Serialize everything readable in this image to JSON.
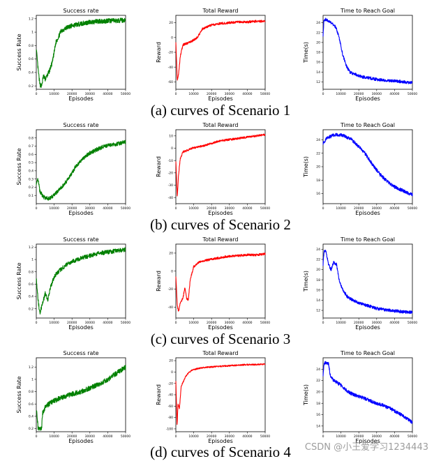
{
  "captions": [
    "(a) curves of Scenario 1",
    "(b) curves of Scenario 2",
    "(c) curves of Scenario 3",
    "(d) curves of Scenario 4"
  ],
  "watermark": "CSDN @小王爱学习1234443",
  "chart_data": [
    {
      "type": "line",
      "scenario": "a",
      "title": "Success rate",
      "xlabel": "Episodes",
      "ylabel": "Success Rate",
      "color": "#008000",
      "xlim": [
        0,
        50000
      ],
      "xticks": [
        0,
        10000,
        20000,
        30000,
        40000,
        50000
      ],
      "ylim": [
        0.15,
        1.25
      ],
      "yticks": [
        0.2,
        0.4,
        0.6,
        0.8,
        1.0,
        1.2
      ],
      "x": [
        0,
        1000,
        2000,
        3000,
        4000,
        5000,
        7000,
        9000,
        11000,
        14000,
        18000,
        22000,
        26000,
        30000,
        35000,
        40000,
        45000,
        50000
      ],
      "y": [
        0.75,
        0.45,
        0.22,
        0.2,
        0.35,
        0.3,
        0.4,
        0.55,
        0.85,
        1.02,
        1.08,
        1.11,
        1.13,
        1.15,
        1.16,
        1.17,
        1.17,
        1.18
      ],
      "noise": 0.035
    },
    {
      "type": "line",
      "scenario": "a",
      "title": "Total Reward",
      "xlabel": "Episodes",
      "ylabel": "Reward",
      "color": "#ff0000",
      "xlim": [
        0,
        50000
      ],
      "xticks": [
        0,
        10000,
        20000,
        30000,
        40000,
        50000
      ],
      "ylim": [
        -70,
        30
      ],
      "yticks": [
        -60,
        -40,
        -20,
        0,
        20
      ],
      "x": [
        0,
        800,
        1500,
        2500,
        4000,
        6000,
        9000,
        12000,
        15000,
        20000,
        25000,
        30000,
        35000,
        40000,
        45000,
        50000
      ],
      "y": [
        -5,
        -58,
        -50,
        -25,
        -10,
        -8,
        -5,
        0,
        12,
        17,
        19,
        20,
        21,
        21,
        22,
        22
      ],
      "noise": 1.5
    },
    {
      "type": "line",
      "scenario": "a",
      "title": "Time to Reach Goal",
      "xlabel": "Episodes",
      "ylabel": "Time(s)",
      "color": "#0000ff",
      "xlim": [
        0,
        50000
      ],
      "xticks": [
        0,
        10000,
        20000,
        30000,
        40000,
        50000
      ],
      "ylim": [
        10.5,
        25.5
      ],
      "yticks": [
        12,
        14,
        16,
        18,
        20,
        22,
        24
      ],
      "x": [
        0,
        500,
        1500,
        3000,
        5000,
        7000,
        9000,
        11000,
        13000,
        15000,
        18000,
        22000,
        26000,
        30000,
        35000,
        40000,
        45000,
        50000
      ],
      "y": [
        21.5,
        24.5,
        24.7,
        24.3,
        23.8,
        23.2,
        21,
        17.5,
        15.2,
        14,
        13.5,
        13,
        12.8,
        12.5,
        12.3,
        12.2,
        12,
        11.8
      ],
      "noise": 0.3
    },
    {
      "type": "line",
      "scenario": "b",
      "title": "Success rate",
      "xlabel": "Episodes",
      "ylabel": "Success Rate",
      "color": "#008000",
      "xlim": [
        0,
        50000
      ],
      "xticks": [
        0,
        10000,
        20000,
        30000,
        40000,
        50000
      ],
      "ylim": [
        0.0,
        0.9
      ],
      "yticks": [
        0.1,
        0.2,
        0.3,
        0.4,
        0.5,
        0.6,
        0.7,
        0.8
      ],
      "x": [
        0,
        1000,
        2000,
        4000,
        7000,
        10000,
        14000,
        18000,
        22000,
        26000,
        30000,
        34000,
        38000,
        42000,
        46000,
        50000
      ],
      "y": [
        0.25,
        0.3,
        0.15,
        0.08,
        0.06,
        0.1,
        0.2,
        0.3,
        0.45,
        0.55,
        0.62,
        0.66,
        0.7,
        0.71,
        0.73,
        0.75
      ],
      "noise": 0.025
    },
    {
      "type": "line",
      "scenario": "b",
      "title": "Total Reward",
      "xlabel": "Episodes",
      "ylabel": "Reward",
      "color": "#ff0000",
      "xlim": [
        0,
        50000
      ],
      "xticks": [
        0,
        10000,
        20000,
        30000,
        40000,
        50000
      ],
      "ylim": [
        -45,
        15
      ],
      "yticks": [
        -40,
        -30,
        -20,
        -10,
        0,
        10
      ],
      "x": [
        0,
        800,
        1500,
        2500,
        4000,
        6000,
        9000,
        12000,
        16000,
        20000,
        25000,
        30000,
        35000,
        40000,
        45000,
        50000
      ],
      "y": [
        -10,
        -40,
        -22,
        -8,
        -3,
        -2,
        0,
        1,
        2,
        4,
        6,
        7,
        8,
        9,
        10,
        11
      ],
      "noise": 0.8
    },
    {
      "type": "line",
      "scenario": "b",
      "title": "Time to Reach Goal",
      "xlabel": "Episodes",
      "ylabel": "Time(s)",
      "color": "#0000ff",
      "xlim": [
        0,
        50000
      ],
      "xticks": [
        0,
        10000,
        20000,
        30000,
        40000,
        50000
      ],
      "ylim": [
        14.5,
        25.5
      ],
      "yticks": [
        16,
        18,
        20,
        22,
        24
      ],
      "x": [
        0,
        2000,
        5000,
        8000,
        12000,
        16000,
        20000,
        24000,
        28000,
        32000,
        36000,
        40000,
        44000,
        48000,
        50000
      ],
      "y": [
        23.5,
        24.2,
        24.6,
        24.8,
        24.6,
        24,
        23,
        21.8,
        20.2,
        18.8,
        17.8,
        17,
        16.5,
        16,
        15.8
      ],
      "noise": 0.25
    },
    {
      "type": "line",
      "scenario": "c",
      "title": "Success rate",
      "xlabel": "Episodes",
      "ylabel": "Success Rate",
      "color": "#008000",
      "xlim": [
        0,
        50000
      ],
      "xticks": [
        0,
        10000,
        20000,
        30000,
        40000,
        50000
      ],
      "ylim": [
        0.05,
        1.25
      ],
      "yticks": [
        0.2,
        0.4,
        0.6,
        0.8,
        1.0,
        1.2
      ],
      "x": [
        0,
        1000,
        2000,
        3500,
        5000,
        6500,
        8000,
        10000,
        13000,
        17000,
        21000,
        25000,
        30000,
        35000,
        40000,
        45000,
        50000
      ],
      "y": [
        0.7,
        0.35,
        0.12,
        0.28,
        0.45,
        0.35,
        0.55,
        0.72,
        0.82,
        0.92,
        0.98,
        1.02,
        1.06,
        1.1,
        1.12,
        1.14,
        1.16
      ],
      "noise": 0.035
    },
    {
      "type": "line",
      "scenario": "c",
      "title": "Total Reward",
      "xlabel": "Episodes",
      "ylabel": "Reward",
      "color": "#ff0000",
      "xlim": [
        0,
        50000
      ],
      "xticks": [
        0,
        10000,
        20000,
        30000,
        40000,
        50000
      ],
      "ylim": [
        -52,
        30
      ],
      "yticks": [
        -40,
        -20,
        0,
        20
      ],
      "x": [
        0,
        800,
        1500,
        2500,
        4000,
        5000,
        6000,
        7000,
        8000,
        10000,
        13000,
        17000,
        22000,
        28000,
        34000,
        40000,
        45000,
        50000
      ],
      "y": [
        -5,
        -38,
        -45,
        -35,
        -30,
        -18,
        -30,
        -32,
        -10,
        5,
        10,
        12,
        14,
        16,
        17,
        18,
        18,
        19
      ],
      "noise": 1.2
    },
    {
      "type": "line",
      "scenario": "c",
      "title": "Time to Reach Goal",
      "xlabel": "Episodes",
      "ylabel": "Time(s)",
      "color": "#0000ff",
      "xlim": [
        0,
        50000
      ],
      "xticks": [
        0,
        10000,
        20000,
        30000,
        40000,
        50000
      ],
      "ylim": [
        10.5,
        25
      ],
      "yticks": [
        12,
        14,
        16,
        18,
        20,
        22,
        24
      ],
      "x": [
        0,
        500,
        1500,
        3000,
        4500,
        6000,
        7500,
        9000,
        11000,
        14000,
        18000,
        22000,
        26000,
        30000,
        35000,
        40000,
        45000,
        50000
      ],
      "y": [
        21,
        23.5,
        23.8,
        21,
        20,
        21.5,
        21,
        18,
        16,
        14.5,
        13.8,
        13.2,
        12.8,
        12.4,
        12.1,
        11.9,
        11.7,
        11.6
      ],
      "noise": 0.3
    },
    {
      "type": "line",
      "scenario": "d",
      "title": "Success rate",
      "xlabel": "Episodes",
      "ylabel": "Success Rate",
      "color": "#008000",
      "xlim": [
        0,
        50000
      ],
      "xticks": [
        0,
        10000,
        20000,
        30000,
        40000,
        50000
      ],
      "ylim": [
        0.15,
        1.35
      ],
      "yticks": [
        0.2,
        0.4,
        0.6,
        0.8,
        1.0,
        1.2
      ],
      "x": [
        0,
        500,
        1000,
        2000,
        3000,
        3500,
        5000,
        8000,
        12000,
        16000,
        20000,
        25000,
        30000,
        35000,
        40000,
        45000,
        50000
      ],
      "y": [
        0.5,
        0.4,
        0.2,
        0.2,
        0.2,
        0.45,
        0.55,
        0.62,
        0.68,
        0.72,
        0.76,
        0.8,
        0.86,
        0.92,
        1.0,
        1.1,
        1.2
      ],
      "noise": 0.04
    },
    {
      "type": "line",
      "scenario": "d",
      "title": "Total Reward",
      "xlabel": "Episodes",
      "ylabel": "Reward",
      "color": "#ff0000",
      "xlim": [
        0,
        50000
      ],
      "xticks": [
        0,
        10000,
        20000,
        30000,
        40000,
        50000
      ],
      "ylim": [
        -105,
        25
      ],
      "yticks": [
        -100,
        -80,
        -60,
        -40,
        -20,
        0,
        20
      ],
      "x": [
        0,
        700,
        1200,
        2000,
        3000,
        4000,
        5500,
        7000,
        9000,
        12000,
        16000,
        20000,
        25000,
        30000,
        35000,
        40000,
        45000,
        50000
      ],
      "y": [
        -15,
        -95,
        -55,
        -65,
        -25,
        -18,
        -8,
        -2,
        3,
        6,
        8,
        9,
        10,
        11,
        12,
        13,
        13,
        14
      ],
      "noise": 1.2
    },
    {
      "type": "line",
      "scenario": "d",
      "title": "Time to Reach Goal",
      "xlabel": "Episodes",
      "ylabel": "Time(s)",
      "color": "#0000ff",
      "xlim": [
        0,
        50000
      ],
      "xticks": [
        0,
        10000,
        20000,
        30000,
        40000,
        50000
      ],
      "ylim": [
        13,
        26
      ],
      "yticks": [
        14,
        16,
        18,
        20,
        22,
        24
      ],
      "x": [
        0,
        500,
        1500,
        3000,
        4000,
        5000,
        7000,
        10000,
        14000,
        18000,
        22000,
        26000,
        30000,
        34000,
        38000,
        42000,
        46000,
        50000
      ],
      "y": [
        23,
        25,
        25.1,
        25,
        23,
        22.3,
        21.8,
        21.2,
        20,
        19.4,
        19,
        18.5,
        18,
        17.6,
        17,
        16.3,
        15.5,
        14.6
      ],
      "noise": 0.3
    }
  ]
}
